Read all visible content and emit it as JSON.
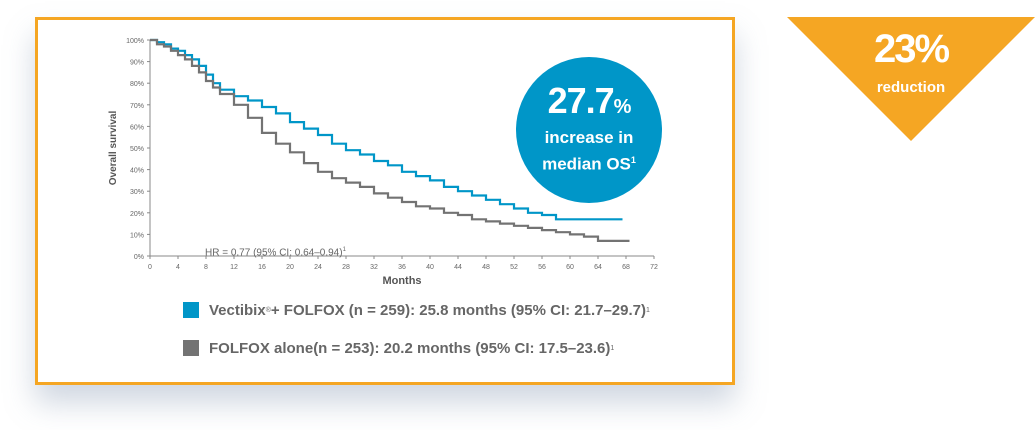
{
  "chart_data": {
    "type": "line",
    "xlabel": "Months",
    "ylabel": "Overall survival",
    "xlim": [
      0,
      72
    ],
    "ylim": [
      0,
      100
    ],
    "x_ticks": [
      "0",
      "4",
      "8",
      "12",
      "16",
      "20",
      "24",
      "28",
      "32",
      "36",
      "40",
      "44",
      "48",
      "52",
      "56",
      "60",
      "64",
      "68",
      "72"
    ],
    "y_ticks": [
      "0%",
      "10%",
      "20%",
      "30%",
      "40%",
      "50%",
      "60%",
      "70%",
      "80%",
      "90%",
      "100%"
    ],
    "series": [
      {
        "name": "Vectibix + FOLFOX",
        "color": "#0096c8",
        "x": [
          0,
          1,
          2,
          3,
          4,
          5,
          6,
          7,
          8,
          9,
          10,
          12,
          14,
          16,
          18,
          20,
          22,
          24,
          26,
          28,
          30,
          32,
          34,
          36,
          38,
          40,
          42,
          44,
          46,
          48,
          50,
          52,
          54,
          56,
          58,
          60,
          62,
          64,
          66,
          67.5
        ],
        "y": [
          100,
          99,
          98,
          96,
          95,
          93,
          91,
          88,
          84,
          80,
          77,
          74,
          72,
          69,
          66,
          62,
          59,
          56,
          52,
          49,
          47,
          44,
          42,
          39,
          37,
          35,
          32,
          30,
          28,
          26,
          24,
          22,
          20,
          19,
          17,
          17,
          17,
          17,
          17,
          17
        ]
      },
      {
        "name": "FOLFOX alone",
        "color": "#737373",
        "x": [
          0,
          1,
          2,
          3,
          4,
          5,
          6,
          7,
          8,
          9,
          10,
          12,
          14,
          16,
          18,
          20,
          22,
          24,
          26,
          28,
          30,
          32,
          34,
          36,
          38,
          40,
          42,
          44,
          46,
          48,
          50,
          52,
          54,
          56,
          58,
          60,
          62,
          64,
          66,
          68.5
        ],
        "y": [
          100,
          98,
          97,
          95,
          93,
          91,
          88,
          85,
          81,
          78,
          75,
          70,
          64,
          57,
          52,
          48,
          43,
          39,
          36,
          34,
          32,
          29,
          27,
          25,
          23,
          22,
          20,
          19,
          17,
          16,
          15,
          14,
          13,
          12,
          11,
          10,
          9,
          7,
          7,
          7
        ]
      }
    ]
  },
  "annotation": {
    "hr_text": "HR = 0.77 (95% CI: 0.64–0.94)",
    "hr_sup": "1"
  },
  "badge": {
    "value": "27.7",
    "unit": "%",
    "line1": "increase in",
    "line2": "median OS",
    "line2_sup": "1",
    "color": "#0096c8"
  },
  "legend": [
    {
      "swatch_color": "#0096c8",
      "name": "Vectibix",
      "mark": "®",
      "text": " + FOLFOX (n = 259): 25.8 months (95% CI: 21.7–29.7)",
      "sup": "1"
    },
    {
      "swatch_color": "#737373",
      "name": "FOLFOX alone",
      "mark": "",
      "text": " (n = 253): 20.2 months (95% CI: 17.5–23.6)",
      "sup": "1"
    }
  ],
  "reduction": {
    "value": "23%",
    "label": "reduction",
    "color": "#f5a623"
  },
  "colors": {
    "frame": "#f5a623",
    "axis": "#888888",
    "text": "#666666"
  }
}
